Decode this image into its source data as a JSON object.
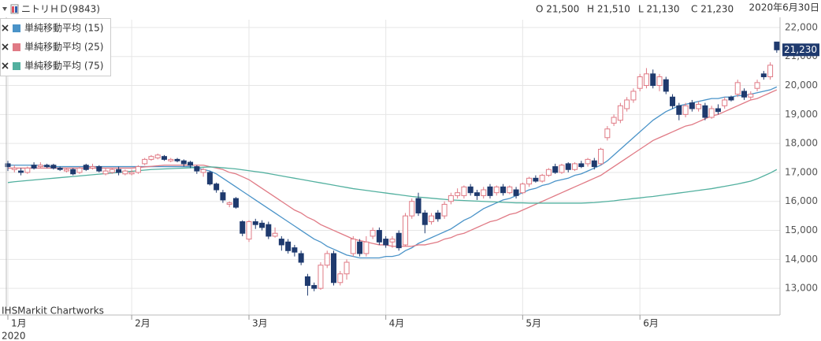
{
  "chart_data": {
    "type": "candlestick",
    "title": "ニトリＨＤ(9843)",
    "ohlc_labels": [
      "O 21,500",
      "H 21,510",
      "L 21,130",
      "C 21,230"
    ],
    "date_label": "2020年6月30日",
    "year_label": "2020",
    "watermark": "IHSMarkit Chartworks",
    "last_label": "21,230",
    "up_color": "#e07a85",
    "down_color": "#1f3a6e",
    "grid": true,
    "ylim": [
      12080,
      22270
    ],
    "yticks": [
      {
        "value": 13000,
        "label": "13,000"
      },
      {
        "value": 14000,
        "label": "14,000"
      },
      {
        "value": 15000,
        "label": "15,000"
      },
      {
        "value": 16000,
        "label": "16,000"
      },
      {
        "value": 17000,
        "label": "17,000"
      },
      {
        "value": 18000,
        "label": "18,000"
      },
      {
        "value": 19000,
        "label": "19,000"
      },
      {
        "value": 20000,
        "label": "20,000"
      },
      {
        "value": 21000,
        "label": "21,000"
      },
      {
        "value": 22000,
        "label": "22,000"
      }
    ],
    "categories": [
      "1月",
      null,
      null,
      null,
      null,
      null,
      null,
      null,
      null,
      null,
      null,
      null,
      null,
      null,
      null,
      null,
      null,
      null,
      null,
      "2月",
      null,
      null,
      null,
      null,
      null,
      null,
      null,
      null,
      null,
      null,
      null,
      null,
      null,
      null,
      null,
      null,
      null,
      "3月",
      null,
      null,
      null,
      null,
      null,
      null,
      null,
      null,
      null,
      null,
      null,
      null,
      null,
      null,
      null,
      null,
      null,
      null,
      null,
      null,
      "4月",
      null,
      null,
      null,
      null,
      null,
      null,
      null,
      null,
      null,
      null,
      null,
      null,
      null,
      null,
      null,
      null,
      null,
      null,
      null,
      null,
      "5月",
      null,
      null,
      null,
      null,
      null,
      null,
      null,
      null,
      null,
      null,
      null,
      null,
      null,
      null,
      null,
      null,
      null,
      "6月",
      null,
      null,
      null,
      null,
      null,
      null,
      null,
      null,
      null,
      null,
      null,
      null,
      null,
      null,
      null,
      null,
      null,
      null,
      null,
      null,
      null
    ],
    "open": [
      17300,
      17100,
      17050,
      17000,
      17250,
      17200,
      17250,
      17250,
      17150,
      17050,
      17100,
      17000,
      17250,
      17150,
      17200,
      16950,
      17000,
      17100,
      16950,
      16950,
      17000,
      17300,
      17450,
      17500,
      17550,
      17400,
      17450,
      17400,
      17350,
      17200,
      17000,
      17000,
      16600,
      16300,
      15900,
      16100,
      15300,
      14700,
      15300,
      15250,
      15200,
      14800,
      14700,
      14600,
      14400,
      14200,
      13400,
      13100,
      13000,
      13800,
      14200,
      13200,
      13500,
      14200,
      14600,
      14200,
      14800,
      15000,
      14700,
      14600,
      14900,
      14500,
      15500,
      16100,
      15600,
      15300,
      15600,
      15500,
      16000,
      16200,
      16200,
      16500,
      16300,
      16200,
      16500,
      16300,
      16500,
      16300,
      16400,
      16300,
      16600,
      16800,
      16700,
      16900,
      17200,
      17000,
      17300,
      17100,
      17300,
      17300,
      17400,
      17300,
      18200,
      18700,
      18800,
      19200,
      19500,
      19900,
      20000,
      20400,
      20000,
      20200,
      19600,
      19300,
      19000,
      19400,
      19200,
      19300,
      18900,
      19200,
      19300,
      19600,
      19700,
      19800,
      19600,
      19900,
      20400,
      20300,
      21500
    ],
    "high": [
      17400,
      17250,
      17150,
      17200,
      17350,
      17350,
      17300,
      17300,
      17200,
      17150,
      17150,
      17200,
      17300,
      17300,
      17250,
      17150,
      17150,
      17200,
      17100,
      17100,
      17250,
      17500,
      17600,
      17650,
      17600,
      17500,
      17500,
      17450,
      17400,
      17250,
      17150,
      17050,
      16650,
      16400,
      16000,
      16150,
      15350,
      15350,
      15400,
      15350,
      15300,
      15100,
      14800,
      14700,
      14500,
      14300,
      13500,
      13200,
      13900,
      14300,
      14300,
      13600,
      14000,
      14800,
      14700,
      14800,
      15100,
      15100,
      14800,
      14800,
      15000,
      15600,
      16100,
      16300,
      15700,
      15600,
      15700,
      16000,
      16300,
      16450,
      16550,
      16600,
      16400,
      16500,
      16600,
      16550,
      16600,
      16550,
      16500,
      16650,
      16850,
      16900,
      16950,
      17150,
      17300,
      17300,
      17350,
      17350,
      17400,
      17500,
      17500,
      17850,
      18600,
      19000,
      19400,
      19600,
      19900,
      20400,
      20600,
      20550,
      20400,
      20300,
      19700,
      19400,
      19400,
      19500,
      19450,
      19400,
      19300,
      19350,
      19600,
      19650,
      20200,
      19900,
      19800,
      20200,
      20500,
      20800,
      21510
    ],
    "low": [
      17050,
      17000,
      16900,
      16950,
      17100,
      17150,
      17150,
      17100,
      17050,
      17000,
      16900,
      16950,
      17050,
      17100,
      17000,
      16900,
      16950,
      16900,
      16900,
      16900,
      16950,
      17250,
      17400,
      17450,
      17400,
      17350,
      17350,
      17200,
      17150,
      16950,
      16850,
      16550,
      16300,
      15950,
      15800,
      15750,
      14800,
      14600,
      15050,
      15000,
      14700,
      14750,
      14300,
      14200,
      14100,
      13800,
      12750,
      12900,
      12950,
      13700,
      13100,
      13100,
      13300,
      14100,
      14100,
      14100,
      14700,
      14500,
      14400,
      14400,
      14300,
      14450,
      15400,
      15500,
      14900,
      15200,
      15300,
      15400,
      15900,
      16100,
      16100,
      16200,
      16050,
      16100,
      16100,
      16200,
      16200,
      16250,
      16100,
      16250,
      16500,
      16650,
      16650,
      16850,
      16950,
      16950,
      17000,
      17050,
      17150,
      17200,
      17100,
      17250,
      18100,
      18600,
      18700,
      19100,
      19400,
      19800,
      19900,
      19900,
      19800,
      19700,
      19200,
      18800,
      18900,
      19100,
      19100,
      18800,
      18850,
      19000,
      19200,
      19450,
      19600,
      19500,
      19500,
      19800,
      20200,
      20200,
      21130
    ],
    "close": [
      17200,
      17150,
      17000,
      17150,
      17150,
      17250,
      17200,
      17150,
      17100,
      17100,
      16950,
      17150,
      17100,
      17200,
      17050,
      17050,
      17100,
      17000,
      17050,
      17000,
      17200,
      17450,
      17550,
      17600,
      17450,
      17450,
      17400,
      17300,
      17250,
      17050,
      17100,
      16600,
      16400,
      16050,
      15950,
      15800,
      14900,
      15300,
      15200,
      15100,
      14800,
      14900,
      14500,
      14300,
      14250,
      13900,
      13100,
      13000,
      13800,
      14200,
      13200,
      13500,
      13900,
      14700,
      14200,
      14600,
      15000,
      14600,
      14500,
      14700,
      14400,
      15500,
      16000,
      15600,
      15200,
      15500,
      15400,
      15900,
      16200,
      16300,
      16500,
      16300,
      16200,
      16400,
      16200,
      16500,
      16300,
      16500,
      16200,
      16600,
      16800,
      16700,
      16900,
      17100,
      17000,
      17250,
      17100,
      17300,
      17200,
      17450,
      17200,
      17800,
      18500,
      18900,
      19300,
      19500,
      19800,
      20300,
      20400,
      20000,
      20300,
      19800,
      19300,
      19000,
      19300,
      19200,
      19350,
      18900,
      19200,
      19100,
      19500,
      19500,
      20100,
      19600,
      19700,
      20100,
      20300,
      20700,
      21230
    ],
    "overlays": [
      {
        "name": "単純移動平均 (15)",
        "color": "#4a93c8",
        "values": [
          17250,
          17250,
          17250,
          17250,
          17250,
          17250,
          17200,
          17200,
          17200,
          17200,
          17200,
          17200,
          17200,
          17200,
          17200,
          17200,
          17200,
          17200,
          17200,
          17200,
          17200,
          17200,
          17200,
          17200,
          17200,
          17200,
          17200,
          17200,
          17200,
          17150,
          17100,
          17050,
          16950,
          16800,
          16650,
          16500,
          16350,
          16200,
          16050,
          15900,
          15750,
          15600,
          15450,
          15300,
          15150,
          15000,
          14850,
          14700,
          14600,
          14450,
          14350,
          14250,
          14150,
          14100,
          14050,
          14050,
          14050,
          14050,
          14100,
          14100,
          14150,
          14300,
          14400,
          14550,
          14650,
          14750,
          14850,
          14950,
          15050,
          15200,
          15350,
          15450,
          15600,
          15750,
          15850,
          15950,
          16050,
          16100,
          16200,
          16300,
          16400,
          16450,
          16550,
          16600,
          16700,
          16750,
          16800,
          16900,
          16950,
          17050,
          17150,
          17250,
          17400,
          17600,
          17800,
          18000,
          18200,
          18400,
          18600,
          18800,
          18950,
          19100,
          19200,
          19300,
          19350,
          19400,
          19450,
          19500,
          19550,
          19550,
          19600,
          19600,
          19650,
          19650,
          19700,
          19750,
          19800,
          19850,
          19950
        ]
      },
      {
        "name": "単純移動平均 (25)",
        "color": "#e07a85",
        "values": [
          17150,
          17150,
          17150,
          17150,
          17150,
          17150,
          17150,
          17150,
          17150,
          17150,
          17150,
          17150,
          17150,
          17150,
          17150,
          17150,
          17150,
          17150,
          17150,
          17150,
          17170,
          17190,
          17210,
          17230,
          17250,
          17250,
          17250,
          17250,
          17250,
          17250,
          17250,
          17200,
          17150,
          17100,
          17000,
          16950,
          16850,
          16750,
          16600,
          16450,
          16300,
          16150,
          16000,
          15850,
          15700,
          15600,
          15450,
          15350,
          15200,
          15100,
          15000,
          14900,
          14800,
          14700,
          14650,
          14600,
          14550,
          14500,
          14500,
          14450,
          14450,
          14450,
          14450,
          14500,
          14500,
          14550,
          14600,
          14700,
          14750,
          14850,
          14900,
          15000,
          15100,
          15200,
          15300,
          15350,
          15450,
          15550,
          15600,
          15700,
          15800,
          15900,
          16000,
          16100,
          16200,
          16300,
          16400,
          16500,
          16600,
          16700,
          16800,
          16900,
          17050,
          17200,
          17350,
          17500,
          17650,
          17800,
          17950,
          18100,
          18200,
          18300,
          18400,
          18500,
          18600,
          18650,
          18750,
          18850,
          18950,
          19000,
          19100,
          19200,
          19300,
          19400,
          19500,
          19550,
          19650,
          19750,
          19850
        ]
      },
      {
        "name": "単純移動平均 (75)",
        "color": "#52b09f",
        "values": [
          16650,
          16680,
          16700,
          16720,
          16740,
          16760,
          16780,
          16800,
          16820,
          16840,
          16860,
          16880,
          16900,
          16920,
          16940,
          16960,
          16980,
          17000,
          17020,
          17040,
          17060,
          17080,
          17100,
          17110,
          17120,
          17130,
          17140,
          17150,
          17160,
          17170,
          17180,
          17190,
          17180,
          17160,
          17140,
          17120,
          17090,
          17060,
          17030,
          17000,
          16960,
          16920,
          16880,
          16840,
          16800,
          16760,
          16720,
          16680,
          16640,
          16600,
          16560,
          16520,
          16480,
          16440,
          16410,
          16380,
          16350,
          16320,
          16290,
          16260,
          16230,
          16200,
          16170,
          16150,
          16130,
          16110,
          16090,
          16070,
          16050,
          16040,
          16030,
          16020,
          16010,
          16000,
          15990,
          15980,
          15970,
          15960,
          15950,
          15950,
          15940,
          15940,
          15940,
          15940,
          15940,
          15940,
          15940,
          15940,
          15940,
          15950,
          15960,
          15980,
          16000,
          16020,
          16050,
          16070,
          16100,
          16120,
          16150,
          16170,
          16200,
          16230,
          16260,
          16290,
          16320,
          16350,
          16380,
          16410,
          16440,
          16480,
          16520,
          16560,
          16600,
          16650,
          16700,
          16780,
          16880,
          16980,
          17100
        ]
      }
    ]
  }
}
